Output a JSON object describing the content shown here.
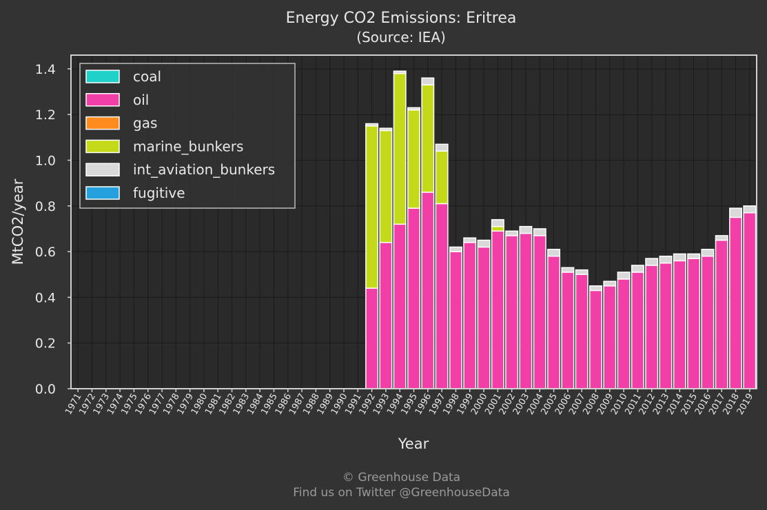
{
  "chart_data": {
    "type": "bar",
    "stacked": true,
    "title": "Energy CO2 Emissions: Eritrea",
    "subtitle": "(Source: IEA)",
    "xlabel": "Year",
    "ylabel": "MtCO2/year",
    "ylim": [
      0,
      1.46
    ],
    "yticks": [
      "0.0",
      "0.2",
      "0.4",
      "0.6",
      "0.8",
      "1.0",
      "1.2",
      "1.4"
    ],
    "grid": true,
    "legend_position": "top-left",
    "categories": [
      "1971",
      "1972",
      "1973",
      "1974",
      "1975",
      "1976",
      "1977",
      "1978",
      "1979",
      "1980",
      "1981",
      "1982",
      "1983",
      "1984",
      "1985",
      "1986",
      "1987",
      "1988",
      "1989",
      "1990",
      "1991",
      "1992",
      "1993",
      "1994",
      "1995",
      "1996",
      "1997",
      "1998",
      "1999",
      "2000",
      "2001",
      "2002",
      "2003",
      "2004",
      "2005",
      "2006",
      "2007",
      "2008",
      "2009",
      "2010",
      "2011",
      "2012",
      "2013",
      "2014",
      "2015",
      "2016",
      "2017",
      "2018",
      "2019"
    ],
    "series": [
      {
        "name": "coal",
        "color": "#1fd1c9",
        "values": [
          0,
          0,
          0,
          0,
          0,
          0,
          0,
          0,
          0,
          0,
          0,
          0,
          0,
          0,
          0,
          0,
          0,
          0,
          0,
          0,
          0,
          0,
          0,
          0,
          0,
          0,
          0,
          0,
          0,
          0,
          0,
          0,
          0,
          0,
          0,
          0,
          0,
          0,
          0,
          0,
          0,
          0,
          0,
          0,
          0,
          0,
          0,
          0,
          0
        ]
      },
      {
        "name": "oil",
        "color": "#f23fa7",
        "values": [
          0,
          0,
          0,
          0,
          0,
          0,
          0,
          0,
          0,
          0,
          0,
          0,
          0,
          0,
          0,
          0,
          0,
          0,
          0,
          0,
          0,
          0.44,
          0.64,
          0.72,
          0.79,
          0.86,
          0.81,
          0.6,
          0.64,
          0.62,
          0.69,
          0.67,
          0.68,
          0.67,
          0.58,
          0.51,
          0.5,
          0.43,
          0.45,
          0.48,
          0.51,
          0.54,
          0.55,
          0.56,
          0.57,
          0.58,
          0.65,
          0.75,
          0.77
        ]
      },
      {
        "name": "gas",
        "color": "#ff8a1e",
        "values": [
          0,
          0,
          0,
          0,
          0,
          0,
          0,
          0,
          0,
          0,
          0,
          0,
          0,
          0,
          0,
          0,
          0,
          0,
          0,
          0,
          0,
          0,
          0,
          0,
          0,
          0,
          0,
          0,
          0,
          0,
          0,
          0,
          0,
          0,
          0,
          0,
          0,
          0,
          0,
          0,
          0,
          0,
          0,
          0,
          0,
          0,
          0,
          0,
          0
        ]
      },
      {
        "name": "marine_bunkers",
        "color": "#c3d91a",
        "values": [
          0,
          0,
          0,
          0,
          0,
          0,
          0,
          0,
          0,
          0,
          0,
          0,
          0,
          0,
          0,
          0,
          0,
          0,
          0,
          0,
          0,
          0.71,
          0.49,
          0.66,
          0.43,
          0.47,
          0.23,
          0,
          0,
          0,
          0.02,
          0,
          0,
          0,
          0,
          0,
          0,
          0,
          0,
          0,
          0,
          0,
          0,
          0,
          0,
          0,
          0,
          0,
          0
        ]
      },
      {
        "name": "int_aviation_bunkers",
        "color": "#d9d9d9",
        "values": [
          0,
          0,
          0,
          0,
          0,
          0,
          0,
          0,
          0,
          0,
          0,
          0,
          0,
          0,
          0,
          0,
          0,
          0,
          0,
          0,
          0,
          0.01,
          0.01,
          0.01,
          0.01,
          0.03,
          0.03,
          0.02,
          0.02,
          0.03,
          0.03,
          0.02,
          0.03,
          0.03,
          0.03,
          0.02,
          0.02,
          0.02,
          0.02,
          0.03,
          0.03,
          0.03,
          0.03,
          0.03,
          0.02,
          0.03,
          0.02,
          0.04,
          0.03
        ]
      },
      {
        "name": "fugitive",
        "color": "#23a1dc",
        "values": [
          0,
          0,
          0,
          0,
          0,
          0,
          0,
          0,
          0,
          0,
          0,
          0,
          0,
          0,
          0,
          0,
          0,
          0,
          0,
          0,
          0,
          0,
          0,
          0,
          0,
          0,
          0,
          0,
          0,
          0,
          0,
          0,
          0,
          0,
          0,
          0,
          0,
          0,
          0,
          0,
          0,
          0,
          0,
          0,
          0,
          0,
          0,
          0,
          0
        ]
      }
    ]
  },
  "credits": {
    "line1": "© Greenhouse Data",
    "line2": "Find us on Twitter @GreenhouseData"
  }
}
